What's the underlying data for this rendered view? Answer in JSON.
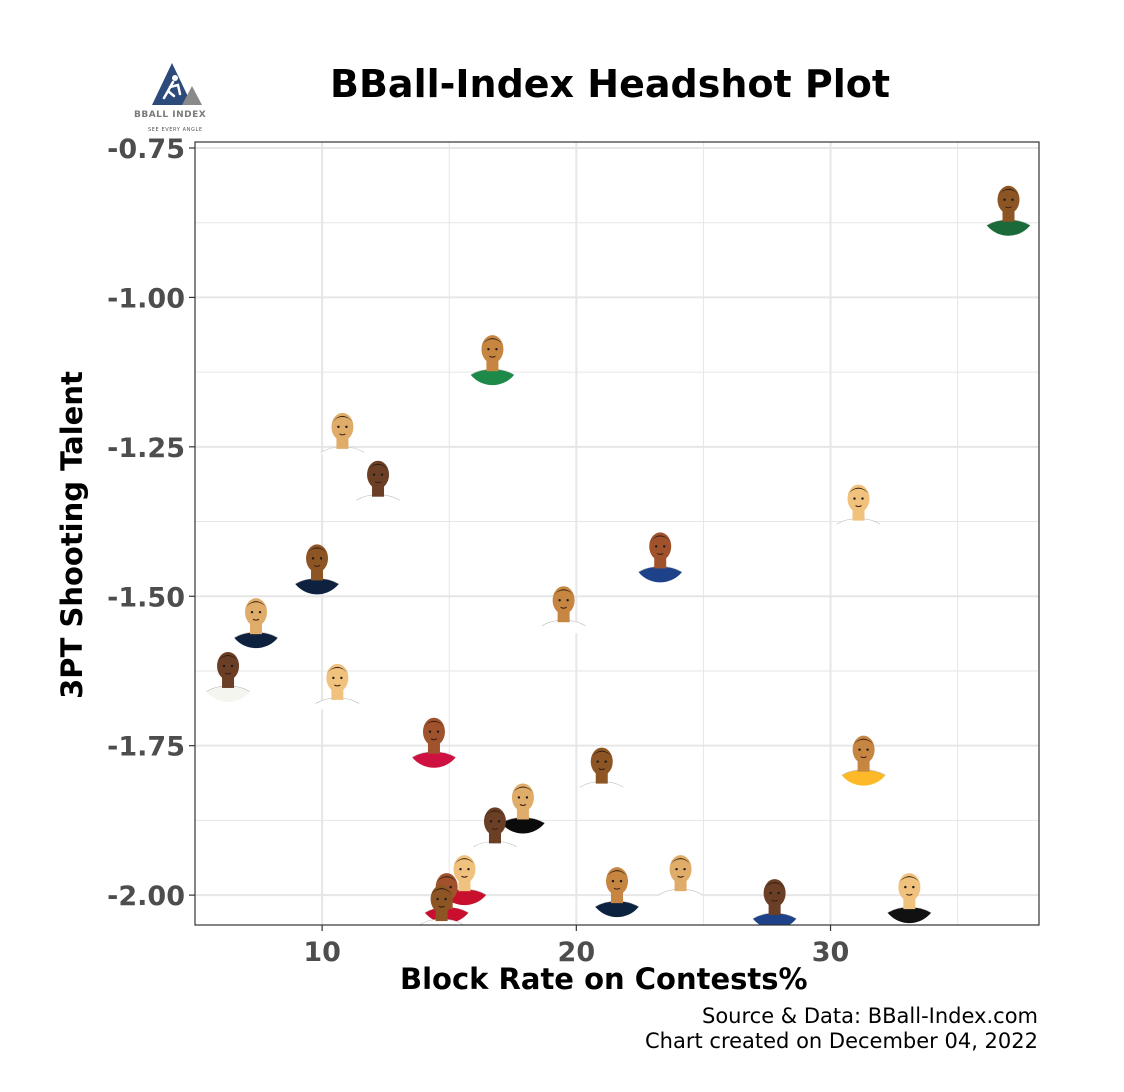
{
  "title": "BBall-Index Headshot Plot",
  "logo": {
    "name": "BBALL INDEX",
    "tagline": "SEE EVERY ANGLE"
  },
  "caption": {
    "source": "Source & Data: BBall-Index.com",
    "created": "Chart created on December 04, 2022"
  },
  "colors": {
    "grid": "#e6e6e6",
    "panel_border": "#333333",
    "tick_label": "#4d4d4d",
    "logo_blue": "#2c4a7a",
    "logo_grey": "#8a8a8a"
  },
  "chart_data": {
    "type": "scatter",
    "title": "BBall-Index Headshot Plot",
    "xlabel": "Block Rate on Contests%",
    "ylabel": "3PT Shooting Talent",
    "xlim": [
      5,
      38.2
    ],
    "ylim": [
      -2.05,
      -0.74
    ],
    "xticks": [
      10,
      20,
      30
    ],
    "xtick_labels": [
      "10",
      "20",
      "30"
    ],
    "yticks": [
      -0.75,
      -1.0,
      -1.25,
      -1.5,
      -1.75,
      -2.0
    ],
    "ytick_labels": [
      "-0.75",
      "-1.00",
      "-1.25",
      "-1.50",
      "-1.75",
      "-2.00"
    ],
    "grid": true,
    "marker": "player headshot",
    "points": [
      {
        "x": 37.0,
        "y": -0.85,
        "jersey": "#1b6b3a"
      },
      {
        "x": 16.7,
        "y": -1.1,
        "jersey": "#1e8a4a"
      },
      {
        "x": 10.8,
        "y": -1.23,
        "jersey": "#ffffff"
      },
      {
        "x": 12.2,
        "y": -1.31,
        "jersey": "#ffffff"
      },
      {
        "x": 31.1,
        "y": -1.35,
        "jersey": "#ffffff"
      },
      {
        "x": 23.3,
        "y": -1.43,
        "jersey": "#1d428a"
      },
      {
        "x": 9.8,
        "y": -1.45,
        "jersey": "#0e2240"
      },
      {
        "x": 19.5,
        "y": -1.52,
        "jersey": "#ffffff"
      },
      {
        "x": 7.4,
        "y": -1.54,
        "jersey": "#0e2240"
      },
      {
        "x": 6.3,
        "y": -1.63,
        "jersey": "#f5f5f0"
      },
      {
        "x": 10.6,
        "y": -1.65,
        "jersey": "#ffffff"
      },
      {
        "x": 14.4,
        "y": -1.74,
        "jersey": "#ce1141"
      },
      {
        "x": 21.0,
        "y": -1.79,
        "jersey": "#ffffff"
      },
      {
        "x": 31.3,
        "y": -1.77,
        "jersey": "#fdb927"
      },
      {
        "x": 17.9,
        "y": -1.85,
        "jersey": "#0b0b0b"
      },
      {
        "x": 16.8,
        "y": -1.89,
        "jersey": "#ffffff"
      },
      {
        "x": 15.6,
        "y": -1.97,
        "jersey": "#c8102e"
      },
      {
        "x": 14.9,
        "y": -2.0,
        "jersey": "#c8102e"
      },
      {
        "x": 14.7,
        "y": -2.02,
        "jersey": "#ffffff"
      },
      {
        "x": 21.6,
        "y": -1.99,
        "jersey": "#0c2340"
      },
      {
        "x": 24.1,
        "y": -1.97,
        "jersey": "#ffffff"
      },
      {
        "x": 27.8,
        "y": -2.01,
        "jersey": "#1d428a"
      },
      {
        "x": 33.1,
        "y": -2.0,
        "jersey": "#111111"
      }
    ]
  }
}
